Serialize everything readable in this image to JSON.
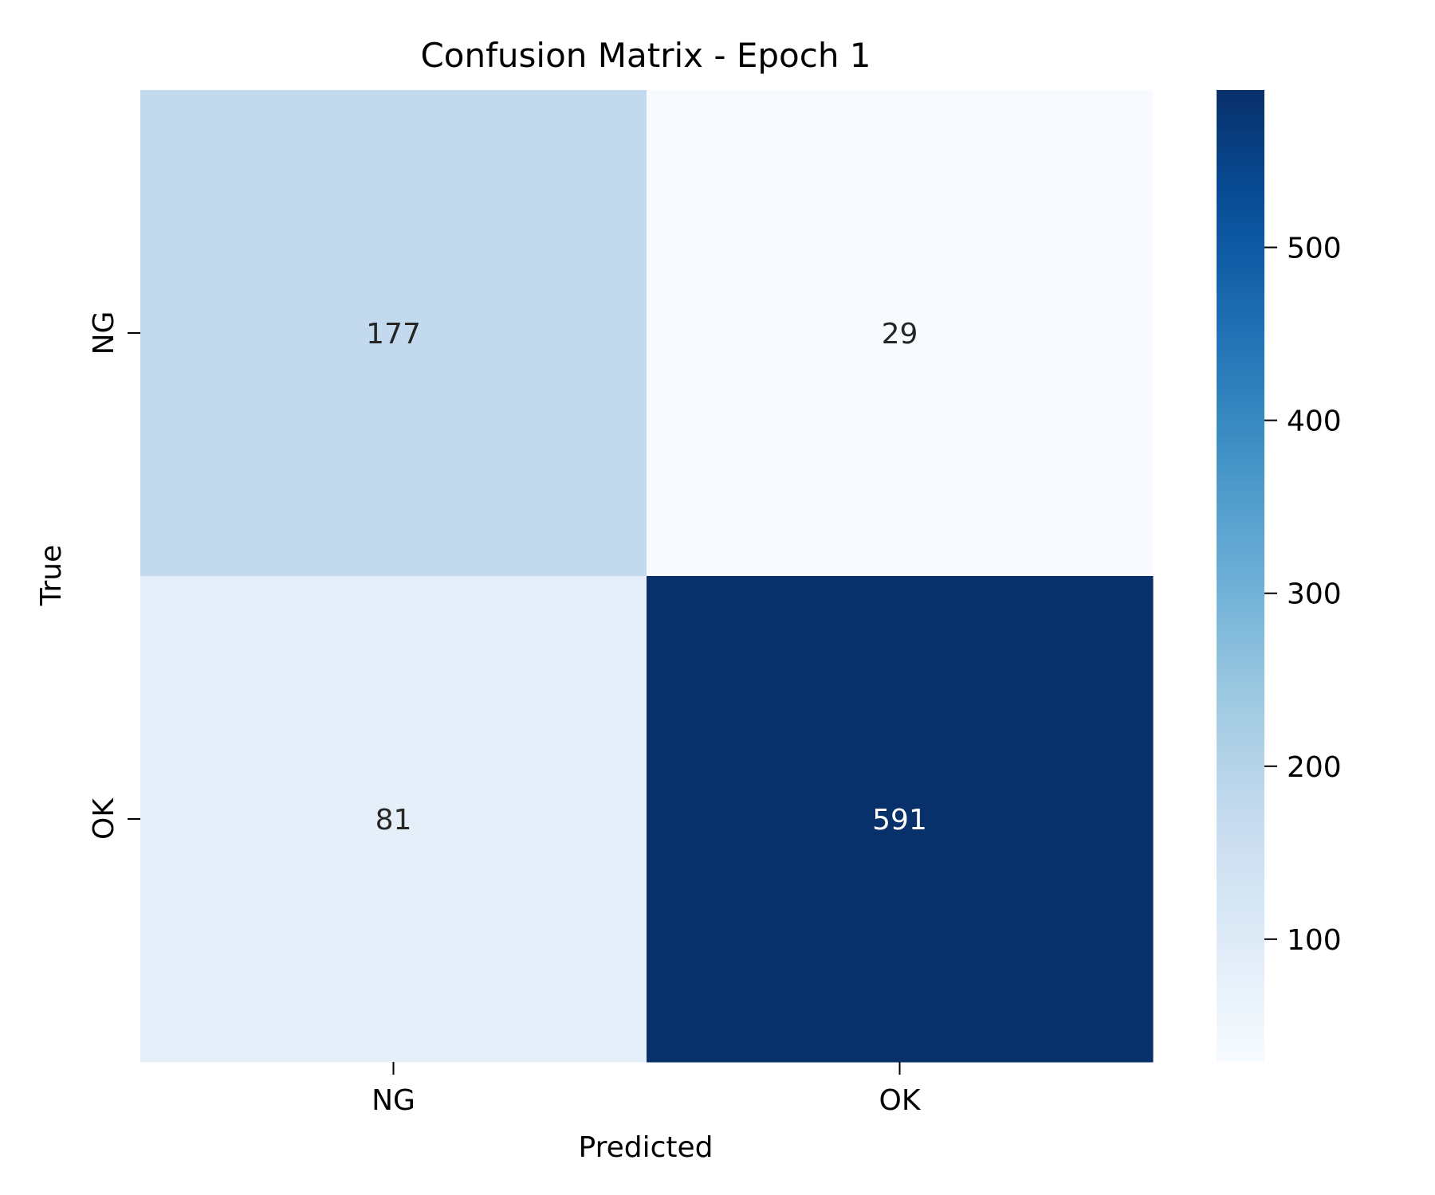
{
  "chart_data": {
    "type": "heatmap",
    "title": "Confusion Matrix - Epoch 1",
    "xlabel": "Predicted",
    "ylabel": "True",
    "x_categories": [
      "NG",
      "OK"
    ],
    "y_categories": [
      "NG",
      "OK"
    ],
    "values": [
      [
        177,
        29
      ],
      [
        81,
        591
      ]
    ],
    "colormap": "Blues",
    "color_range": [
      29,
      591
    ],
    "colorbar_ticks": [
      100,
      200,
      300,
      400,
      500
    ],
    "colors": {
      "light_text": "#ffffff",
      "dark_text": "#262626"
    }
  }
}
